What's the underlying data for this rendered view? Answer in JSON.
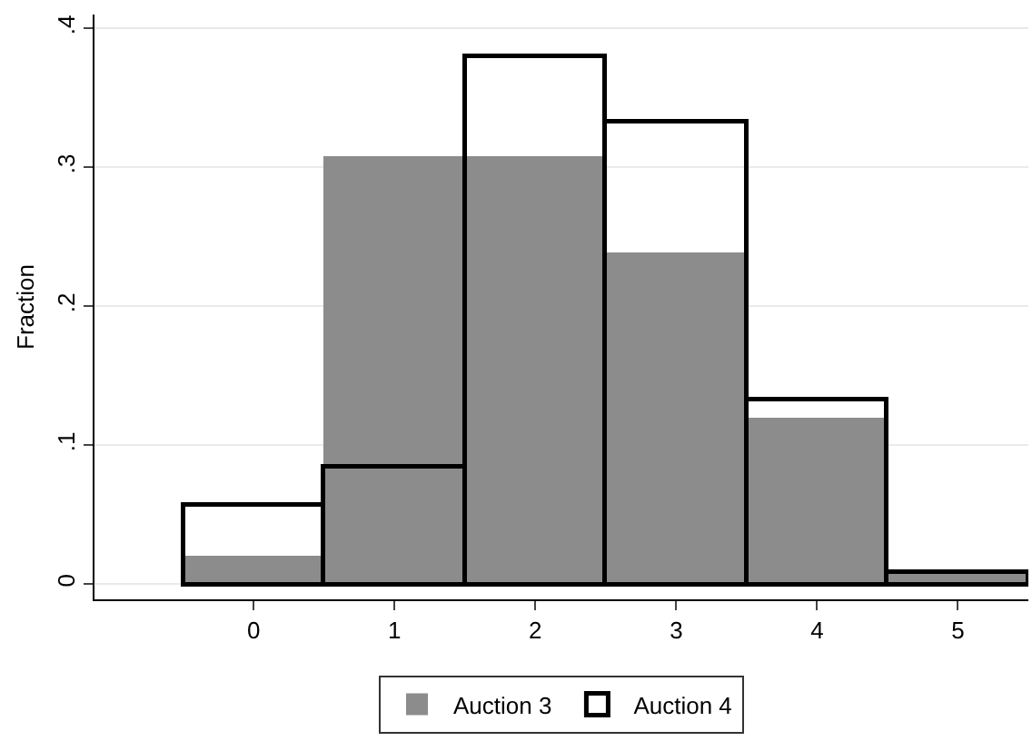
{
  "chart_data": {
    "type": "histogram",
    "ylabel": "Fraction",
    "bins": [
      -0.5,
      0.5,
      1.5,
      2.5,
      3.5,
      4.5,
      5.5
    ],
    "series": [
      {
        "name": "Auction 3",
        "color": "#8c8c8c",
        "values": [
          0.02,
          0.308,
          0.308,
          0.239,
          0.12,
          0.007
        ]
      },
      {
        "name": "Auction 4",
        "color": "#000000",
        "line_style": "solid",
        "values": [
          0.057,
          0.085,
          0.38,
          0.333,
          0.133,
          0.009
        ]
      }
    ],
    "xlim": [
      -1.13,
      5.5
    ],
    "xticks": [
      0,
      1,
      2,
      3,
      4,
      5
    ],
    "ylim": [
      -0.011,
      0.41
    ],
    "yticks": [
      0,
      {
        "value": 0.1,
        "label": ".1"
      },
      {
        "value": 0.2,
        "label": ".2"
      },
      {
        "value": 0.3,
        "label": ".3"
      },
      {
        "value": 0.4,
        "label": ".4"
      }
    ],
    "grid": "y",
    "legend": "bottom"
  }
}
